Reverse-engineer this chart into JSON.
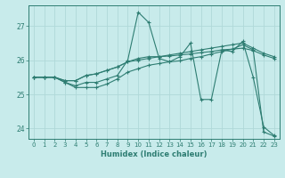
{
  "xlabel": "Humidex (Indice chaleur)",
  "ylabel": "",
  "background_color": "#c8ebeb",
  "grid_color": "#b0d8d8",
  "line_color": "#2e7d72",
  "xlim": [
    -0.5,
    23.5
  ],
  "ylim": [
    23.7,
    27.6
  ],
  "yticks": [
    24,
    25,
    26,
    27
  ],
  "xticks": [
    0,
    1,
    2,
    3,
    4,
    5,
    6,
    7,
    8,
    9,
    10,
    11,
    12,
    13,
    14,
    15,
    16,
    17,
    18,
    19,
    20,
    21,
    22,
    23
  ],
  "series": [
    [
      25.5,
      25.5,
      25.5,
      25.35,
      25.25,
      25.35,
      25.35,
      25.45,
      25.55,
      26.0,
      27.4,
      27.1,
      26.05,
      25.95,
      26.1,
      26.5,
      24.85,
      24.85,
      26.3,
      26.25,
      26.55,
      25.5,
      24.05,
      23.8
    ],
    [
      25.5,
      25.5,
      25.5,
      25.4,
      25.4,
      25.55,
      25.6,
      25.7,
      25.8,
      25.95,
      26.05,
      26.1,
      26.1,
      26.15,
      26.2,
      26.25,
      26.3,
      26.35,
      26.4,
      26.45,
      26.5,
      26.35,
      26.2,
      26.1
    ],
    [
      25.5,
      25.5,
      25.5,
      25.4,
      25.4,
      25.55,
      25.6,
      25.7,
      25.8,
      25.95,
      26.0,
      26.05,
      26.1,
      26.12,
      26.15,
      26.18,
      26.22,
      26.25,
      26.3,
      26.32,
      26.35,
      26.28,
      26.15,
      26.05
    ],
    [
      25.5,
      25.5,
      25.5,
      25.35,
      25.2,
      25.2,
      25.2,
      25.3,
      25.45,
      25.65,
      25.75,
      25.85,
      25.9,
      25.95,
      25.98,
      26.05,
      26.1,
      26.18,
      26.25,
      26.32,
      26.45,
      26.3,
      23.9,
      23.78
    ]
  ]
}
